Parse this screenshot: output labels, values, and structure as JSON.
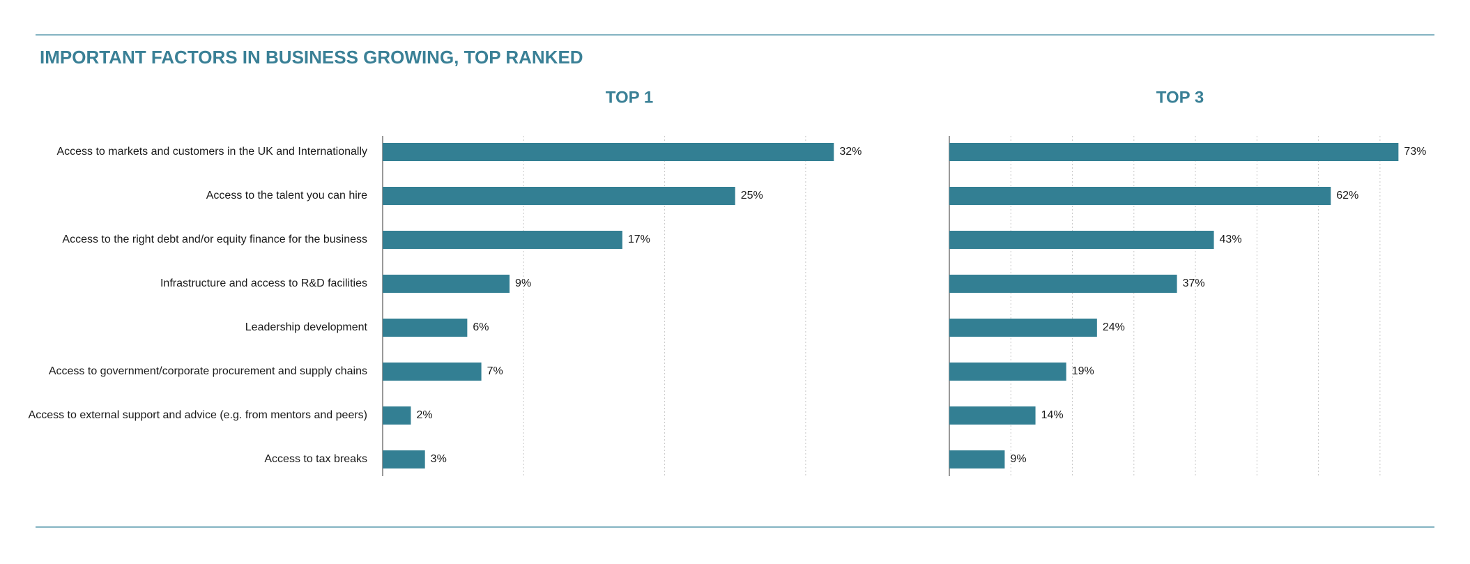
{
  "title": "IMPORTANT FACTORS IN BUSINESS GROWING, TOP RANKED",
  "chart_data": [
    {
      "type": "bar",
      "orientation": "horizontal",
      "title": "TOP 1",
      "color": "#337f93",
      "grid": true,
      "categories": [
        "Access to markets and customers in the UK and Internationally",
        "Access to the talent you can hire",
        "Access to the right debt and/or equity finance for the business",
        "Infrastructure and access to R&D facilities",
        "Leadership development",
        "Access to government/corporate procurement and supply chains",
        "Access to external support and advice (e.g. from mentors and peers)",
        "Access to tax breaks"
      ],
      "values": [
        32,
        25,
        17,
        9,
        6,
        7,
        2,
        3
      ],
      "value_labels": [
        "32%",
        "25%",
        "17%",
        "9%",
        "6%",
        "7%",
        "2%",
        "3%"
      ],
      "xlim": [
        0,
        35
      ],
      "xticks": [
        0,
        10,
        20,
        30
      ]
    },
    {
      "type": "bar",
      "orientation": "horizontal",
      "title": "TOP 3",
      "color": "#337f93",
      "grid": true,
      "values": [
        73,
        62,
        43,
        37,
        24,
        19,
        14,
        9
      ],
      "value_labels": [
        "73%",
        "62%",
        "43%",
        "37%",
        "24%",
        "19%",
        "14%",
        "9%"
      ],
      "xlim": [
        0,
        75
      ],
      "xticks": [
        0,
        10,
        20,
        30,
        40,
        50,
        60,
        70
      ]
    }
  ]
}
